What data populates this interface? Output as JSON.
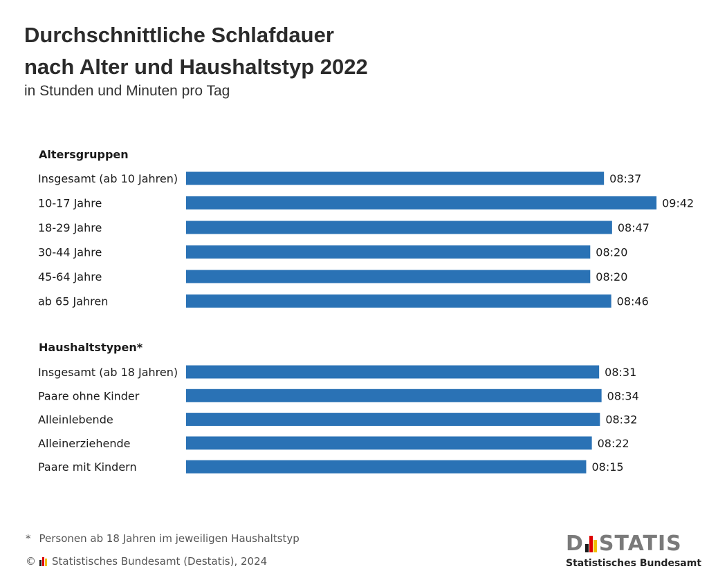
{
  "header": {
    "title_line1": "Durchschnittliche Schlafdauer",
    "title_line2": "nach Alter und Haushaltstyp 2022",
    "subtitle": "in Stunden und Minuten pro Tag"
  },
  "chart_data": {
    "type": "bar",
    "orientation": "horizontal",
    "value_unit": "hh:mm",
    "bar_color": "#2a72b5",
    "groups": [
      {
        "heading": "Altersgruppen",
        "categories": [
          "Insgesamt (ab 10 Jahren)",
          "10-17 Jahre",
          "18-29 Jahre",
          "30-44 Jahre",
          "45-64 Jahre",
          "ab 65 Jahren"
        ],
        "values": [
          "08:37",
          "09:42",
          "08:47",
          "08:20",
          "08:20",
          "08:46"
        ]
      },
      {
        "heading": "Haushaltstypen*",
        "categories": [
          "Insgesamt (ab 18 Jahren)",
          "Paare ohne Kinder",
          "Alleinlebende",
          "Alleinerziehende",
          "Paare mit Kindern"
        ],
        "values": [
          "08:31",
          "08:34",
          "08:32",
          "08:22",
          "08:15"
        ]
      }
    ]
  },
  "footer": {
    "footnote_marker": "*",
    "footnote": "Personen ab 18 Jahren im jeweiligen Haushaltstyp",
    "copyright_symbol": "©",
    "copyright": "Statistisches Bundesamt (Destatis), 2024",
    "logo_left": "D",
    "logo_right": "STATIS",
    "logo_sub": "Statistisches Bundesamt"
  }
}
